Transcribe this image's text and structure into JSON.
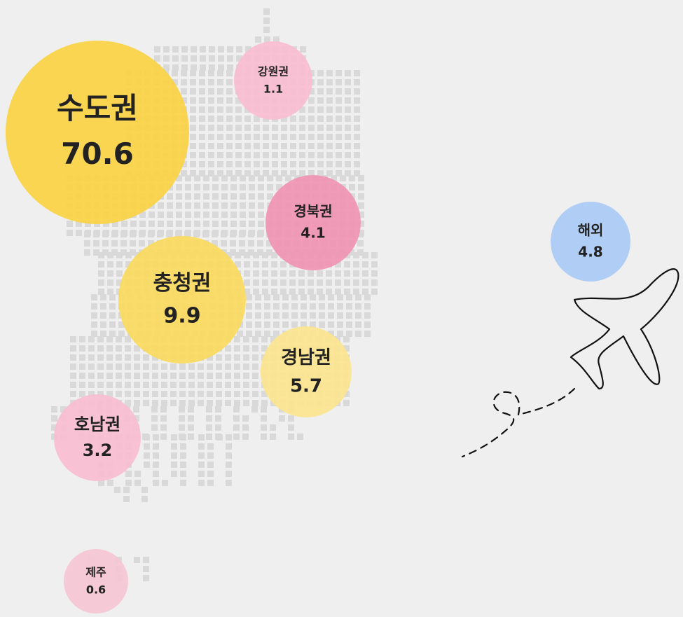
{
  "regions": [
    {
      "name": "수도권",
      "value": "70.6",
      "color": "#f9d13f"
    },
    {
      "name": "강원권",
      "value": "1.1",
      "color": "#f8bcd0"
    },
    {
      "name": "경북권",
      "value": "4.1",
      "color": "#ef92b1"
    },
    {
      "name": "충청권",
      "value": "9.9",
      "color": "#f9d95a"
    },
    {
      "name": "경남권",
      "value": "5.7",
      "color": "#fbe48c"
    },
    {
      "name": "호남권",
      "value": "3.2",
      "color": "#f8bcd0"
    },
    {
      "name": "제주",
      "value": "0.6",
      "color": "#f6c4d4"
    },
    {
      "name": "해외",
      "value": "4.8",
      "color": "#a8c9f6"
    }
  ]
}
